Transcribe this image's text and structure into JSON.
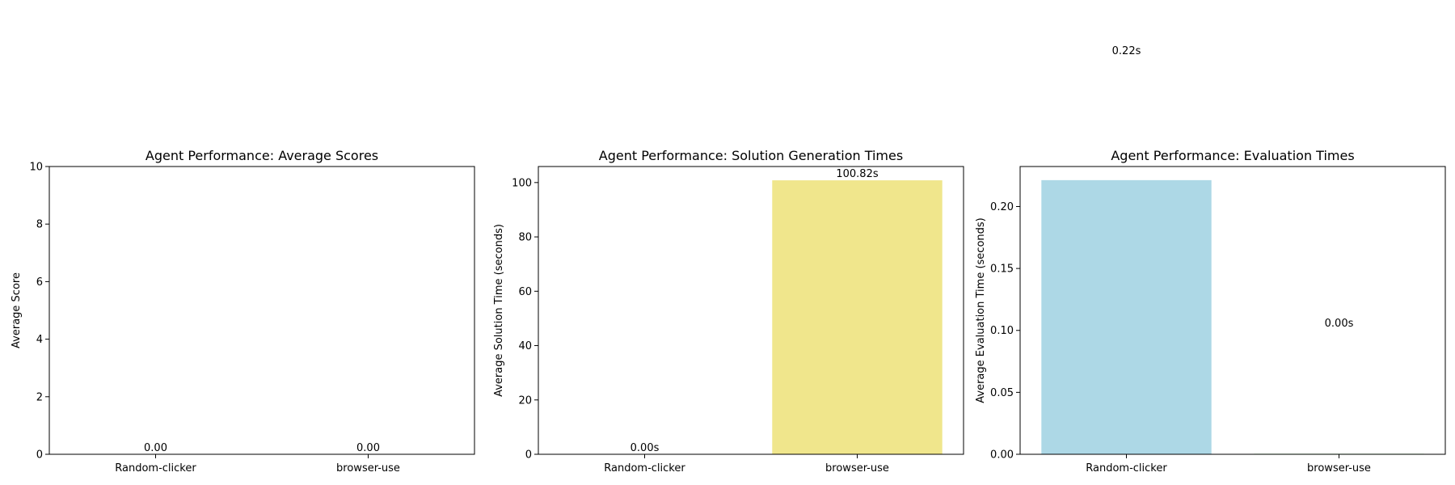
{
  "chart_data": [
    {
      "type": "bar",
      "title": "Agent Performance: Average Scores",
      "xlabel": "",
      "ylabel": "Average Score",
      "categories": [
        "Random-clicker",
        "browser-use"
      ],
      "values": [
        0.0,
        0.0
      ],
      "value_labels": [
        "0.00",
        "0.00"
      ],
      "ylim": [
        0,
        10
      ],
      "yticks": [
        0,
        2,
        4,
        6,
        8,
        10
      ],
      "ytick_labels": [
        "0",
        "2",
        "4",
        "6",
        "8",
        "10"
      ],
      "colors": [
        "#add8e6",
        "#f0e68c"
      ],
      "grid": false
    },
    {
      "type": "bar",
      "title": "Agent Performance: Solution Generation Times",
      "xlabel": "",
      "ylabel": "Average Solution Time (seconds)",
      "categories": [
        "Random-clicker",
        "browser-use"
      ],
      "values": [
        0.0,
        100.82
      ],
      "value_labels": [
        "0.00s",
        "100.82s"
      ],
      "ylim": [
        0,
        105.9
      ],
      "yticks": [
        0,
        20,
        40,
        60,
        80,
        100
      ],
      "ytick_labels": [
        "0",
        "20",
        "40",
        "60",
        "80",
        "100"
      ],
      "colors": [
        "#add8e6",
        "#f0e68c"
      ],
      "grid": false
    },
    {
      "type": "bar",
      "title": "Agent Performance: Evaluation Times",
      "xlabel": "",
      "ylabel": "Average Evaluation Time (seconds)",
      "categories": [
        "Random-clicker",
        "browser-use"
      ],
      "values": [
        0.2213,
        0.0004
      ],
      "value_labels": [
        "0.22s",
        "0.00s"
      ],
      "ylim": [
        0,
        0.2323
      ],
      "yticks": [
        0,
        0.05,
        0.1,
        0.15,
        0.2
      ],
      "ytick_labels": [
        "0.00",
        "0.05",
        "0.10",
        "0.15",
        "0.20"
      ],
      "colors": [
        "#add8e6",
        "#90ee90"
      ],
      "grid": false
    }
  ]
}
